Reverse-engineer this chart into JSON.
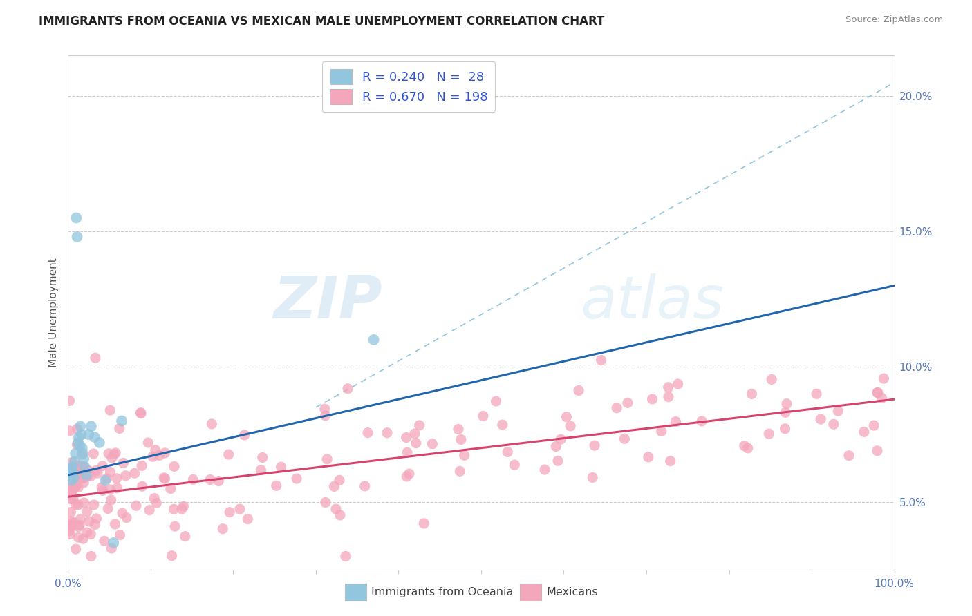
{
  "title": "IMMIGRANTS FROM OCEANIA VS MEXICAN MALE UNEMPLOYMENT CORRELATION CHART",
  "source": "Source: ZipAtlas.com",
  "ylabel": "Male Unemployment",
  "watermark_zip": "ZIP",
  "watermark_atlas": "atlas",
  "legend_r_oceania": "0.240",
  "legend_n_oceania": " 28",
  "legend_r_mexicans": "0.670",
  "legend_n_mexicans": "198",
  "legend_label_oceania": "Immigrants from Oceania",
  "legend_label_mexicans": "Mexicans",
  "oceania_color": "#92c5de",
  "mexicans_color": "#f4a6bb",
  "oceania_line_color": "#2166ac",
  "mexicans_line_color": "#d6446e",
  "dashed_line_color": "#92c5de",
  "background_color": "#ffffff",
  "oceania_line_y_start": 0.06,
  "oceania_line_y_end": 0.13,
  "mexicans_line_y_start": 0.052,
  "mexicans_line_y_end": 0.088,
  "dashed_line_x_start": 0.3,
  "dashed_line_x_end": 1.0,
  "dashed_line_y_start": 0.085,
  "dashed_line_y_end": 0.205,
  "xlim": [
    0.0,
    1.0
  ],
  "ylim": [
    0.025,
    0.215
  ],
  "yticks": [
    0.05,
    0.1,
    0.15,
    0.2
  ],
  "ytick_labels": [
    "5.0%",
    "10.0%",
    "15.0%",
    "20.0%"
  ]
}
